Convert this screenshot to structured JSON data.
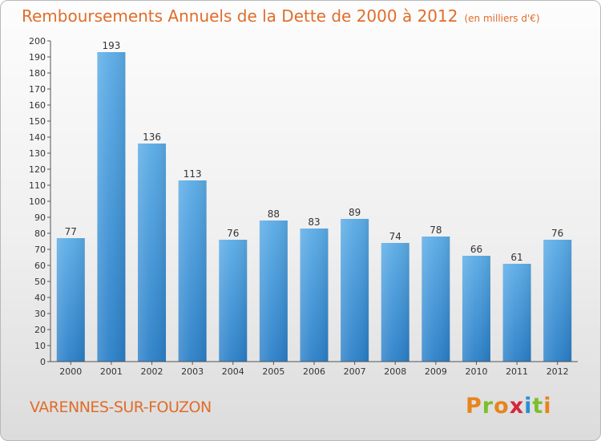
{
  "header": {
    "title": "Remboursements Annuels de la Dette de 2000 à 2012",
    "subtitle": "(en milliers d'€)"
  },
  "footer": {
    "city": "VARENNES-SUR-FOUZON",
    "logo_text": "Proxiti",
    "logo_colors": [
      "#e8841c",
      "#7bbf2a",
      "#e8841c",
      "#d6263a",
      "#2a8fd0",
      "#7bbf2a",
      "#e8841c"
    ]
  },
  "colors": {
    "text_accent": "#e06d2a",
    "bar_top": "#5aabe6",
    "bar_bottom": "#2a7fc8"
  },
  "chart_data": {
    "type": "bar",
    "categories": [
      "2000",
      "2001",
      "2002",
      "2003",
      "2004",
      "2005",
      "2006",
      "2007",
      "2008",
      "2009",
      "2010",
      "2011",
      "2012"
    ],
    "values": [
      77,
      193,
      136,
      113,
      76,
      88,
      83,
      89,
      74,
      78,
      66,
      61,
      76
    ],
    "title": "Remboursements Annuels de la Dette de 2000 à 2012",
    "subtitle": "(en milliers d'€)",
    "ylim": [
      0,
      200
    ],
    "ytick_step": 10,
    "grid": false,
    "data_labels": true
  }
}
